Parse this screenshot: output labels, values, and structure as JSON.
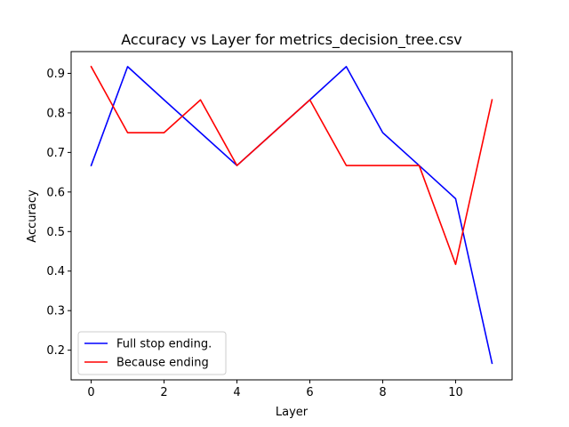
{
  "chart_data": {
    "type": "line",
    "title": "Accuracy vs Layer for metrics_decision_tree.csv",
    "xlabel": "Layer",
    "ylabel": "Accuracy",
    "x": [
      0,
      1,
      2,
      3,
      4,
      5,
      6,
      7,
      8,
      9,
      10,
      11
    ],
    "xlim": [
      -0.55,
      11.55
    ],
    "ylim": [
      0.125,
      0.955
    ],
    "xticks": [
      0,
      2,
      4,
      6,
      8,
      10
    ],
    "yticks": [
      0.2,
      0.3,
      0.4,
      0.5,
      0.6,
      0.7,
      0.8,
      0.9
    ],
    "grid": false,
    "legend_position": "lower-left",
    "series": [
      {
        "name": "Full stop ending.",
        "color": "#0000ff",
        "values": [
          0.667,
          0.917,
          0.833,
          0.75,
          0.667,
          0.75,
          0.833,
          0.917,
          0.75,
          0.667,
          0.583,
          0.167
        ]
      },
      {
        "name": "Because ending",
        "color": "#ff0000",
        "values": [
          0.917,
          0.75,
          0.75,
          0.833,
          0.667,
          0.75,
          0.833,
          0.667,
          0.667,
          0.667,
          0.417,
          0.833
        ]
      }
    ]
  }
}
